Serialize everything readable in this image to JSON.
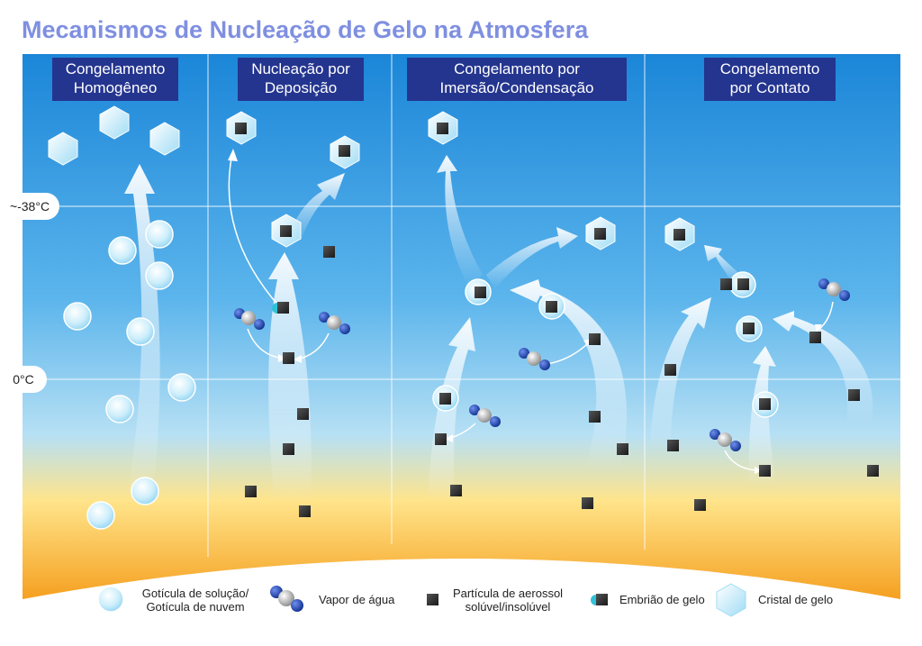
{
  "title": "Mecanismos de Nucleação de Gelo na Atmosfera",
  "columns": [
    {
      "line1": "Congelamento",
      "line2": "Homogêneo"
    },
    {
      "line1": "Nucleação por",
      "line2": "Deposição"
    },
    {
      "line1": "Congelamento por",
      "line2": "Imersão/Condensação"
    },
    {
      "line1": "Congelamento",
      "line2": "por Contato"
    }
  ],
  "temperatures": [
    "~-38°C",
    "0°C"
  ],
  "legend": [
    {
      "icon": "droplet-icon",
      "line1": "Gotícula de solução/",
      "line2": "Gotícula de nuvem"
    },
    {
      "icon": "water-vapor-icon",
      "line1": "Vapor de água",
      "line2": ""
    },
    {
      "icon": "aerosol-particle-icon",
      "line1": "Partícula de aerossol",
      "line2": "solúvel/insolúvel"
    },
    {
      "icon": "ice-embryo-icon",
      "line1": "Embrião de gelo",
      "line2": ""
    },
    {
      "icon": "ice-crystal-icon",
      "line1": "Cristal de gelo",
      "line2": ""
    }
  ],
  "colors": {
    "sky_top": "#1b86d8",
    "sky_mid": "#5cb5ec",
    "horizon": "#ffd75a",
    "ground": "#f5a020",
    "title": "#7f8fe0",
    "header_bg": "#24358f",
    "particle": "#2e2e2e",
    "vapor_blue": "#1a3fa8"
  }
}
